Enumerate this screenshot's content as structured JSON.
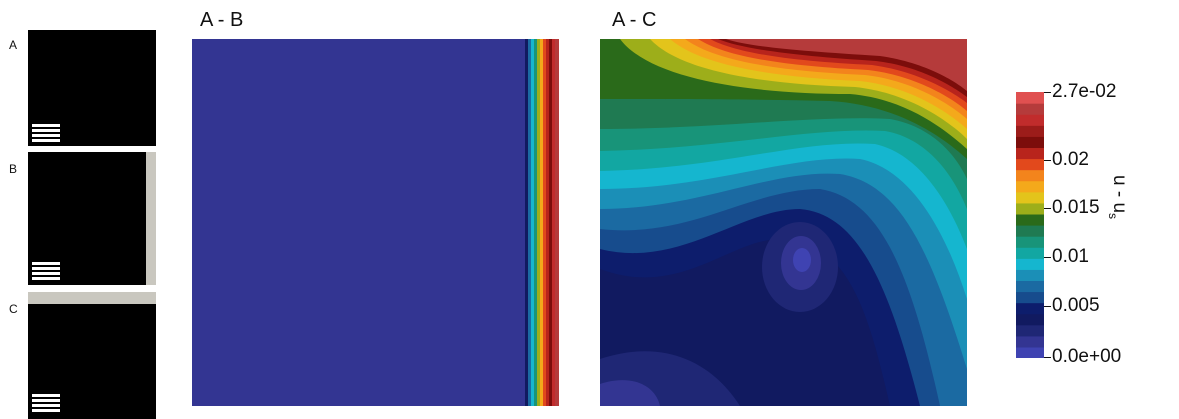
{
  "thumbnails": [
    {
      "label": "A",
      "wall": "none"
    },
    {
      "label": "B",
      "wall": "right"
    },
    {
      "label": "C",
      "wall": "top"
    }
  ],
  "panels": [
    {
      "title": "A - B"
    },
    {
      "title": "A - C"
    }
  ],
  "colorbar": {
    "title_main": "u - u",
    "title_sub": "s",
    "min": 0,
    "max": 0.027,
    "levels": 20,
    "ticks": [
      {
        "value": 0.027,
        "label": "2.7e-02"
      },
      {
        "value": 0.02,
        "label": "0.02"
      },
      {
        "value": 0.015,
        "label": "0.015"
      },
      {
        "value": 0.01,
        "label": "0.01"
      },
      {
        "value": 0.005,
        "label": "0.005"
      },
      {
        "value": 0,
        "label": "0.0e+00"
      }
    ],
    "colors": [
      "#3f43b2",
      "#333592",
      "#1f2775",
      "#111a60",
      "#0d1d6c",
      "#174c8d",
      "#1b6aa2",
      "#1b8fb7",
      "#15b6cf",
      "#12a7a2",
      "#189479",
      "#1f7a52",
      "#2a6a1a",
      "#9dae1a",
      "#e3c41b",
      "#f4a91b",
      "#f3841c",
      "#e2491c",
      "#b8241c",
      "#7c0d0b",
      "#9c1c1a",
      "#c12c2c",
      "#b53b3b",
      "#e05050"
    ]
  }
}
